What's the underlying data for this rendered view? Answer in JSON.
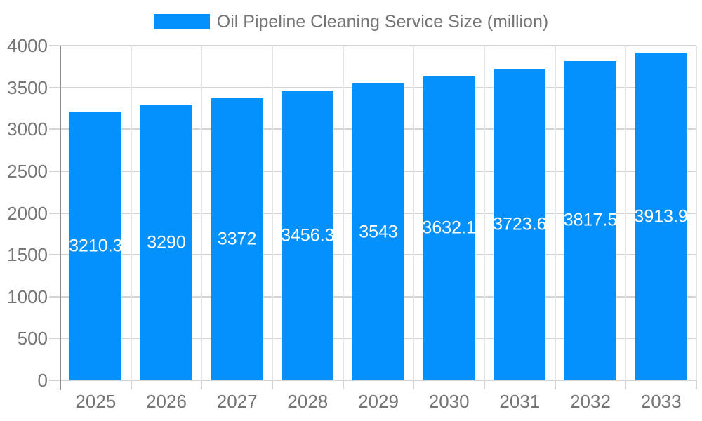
{
  "chart_data": {
    "type": "bar",
    "title": "Oil Pipeline Cleaning Service Size (million)",
    "categories": [
      "2025",
      "2026",
      "2027",
      "2028",
      "2029",
      "2030",
      "2031",
      "2032",
      "2033"
    ],
    "series": [
      {
        "name": "Oil Pipeline Cleaning Service Size (million)",
        "values": [
          3210.3,
          3290,
          3372,
          3456.3,
          3543,
          3632.1,
          3723.6,
          3817.5,
          3913.9
        ],
        "color": "#0591fb"
      }
    ],
    "data_labels": [
      "3210.3",
      "3290",
      "3372",
      "3456.3",
      "3543",
      "3632.1",
      "3723.6",
      "3817.5",
      "3913.9"
    ],
    "xlabel": "",
    "ylabel": "",
    "ylim": [
      0,
      4000
    ],
    "ytick_step": 500,
    "ytick_labels": [
      "0",
      "500",
      "1000",
      "1500",
      "2000",
      "2500",
      "3000",
      "3500",
      "4000"
    ],
    "grid": "horizontal and vertical, behind bars",
    "legend_position": "top-center",
    "colors": {
      "bar": "#0591fb",
      "axis_text": "#757575",
      "value_label_text": "#ffffff",
      "grid_horizontal": "#d4d4d4",
      "grid_vertical": "#e4e4e4",
      "axis_line": "#8f8f8f",
      "background": "#ffffff"
    }
  }
}
